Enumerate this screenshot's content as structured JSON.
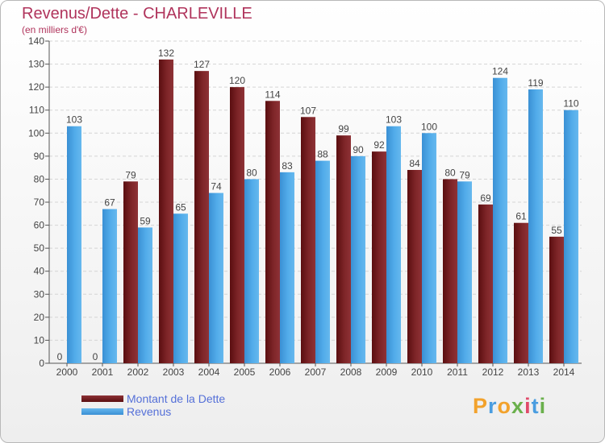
{
  "header": {
    "title": "Revenus/Dette - CHARLEVILLE",
    "subtitle": "(en milliers d'€)"
  },
  "legend": [
    {
      "label": "Montant de la Dette",
      "color": "#7a1a1c"
    },
    {
      "label": "Revenus",
      "color": "#4ea8e6"
    }
  ],
  "logo": {
    "letters": [
      "P",
      "r",
      "o",
      "x",
      "i",
      "t",
      "i"
    ],
    "colors": [
      "#f2a22c",
      "#4a9de0",
      "#f2a22c",
      "#6ab04c",
      "#e04a6a",
      "#4a9de0",
      "#6ab04c"
    ]
  },
  "chart_data": {
    "type": "bar",
    "categories": [
      "2000",
      "2001",
      "2002",
      "2003",
      "2004",
      "2005",
      "2006",
      "2007",
      "2008",
      "2009",
      "2010",
      "2011",
      "2012",
      "2013",
      "2014"
    ],
    "series": [
      {
        "name": "Montant de la Dette",
        "color": "#7a1a1c",
        "values": [
          0,
          0,
          79,
          132,
          127,
          120,
          114,
          107,
          99,
          92,
          84,
          80,
          69,
          61,
          55
        ]
      },
      {
        "name": "Revenus",
        "color": "#4ea8e6",
        "values": [
          103,
          67,
          59,
          65,
          74,
          80,
          83,
          88,
          90,
          103,
          100,
          79,
          124,
          119,
          110
        ]
      }
    ],
    "ylim": [
      0,
      140
    ],
    "yticks": [
      0,
      10,
      20,
      30,
      40,
      50,
      60,
      70,
      80,
      90,
      100,
      110,
      120,
      130,
      140
    ],
    "grid": true,
    "data_labels": true
  }
}
